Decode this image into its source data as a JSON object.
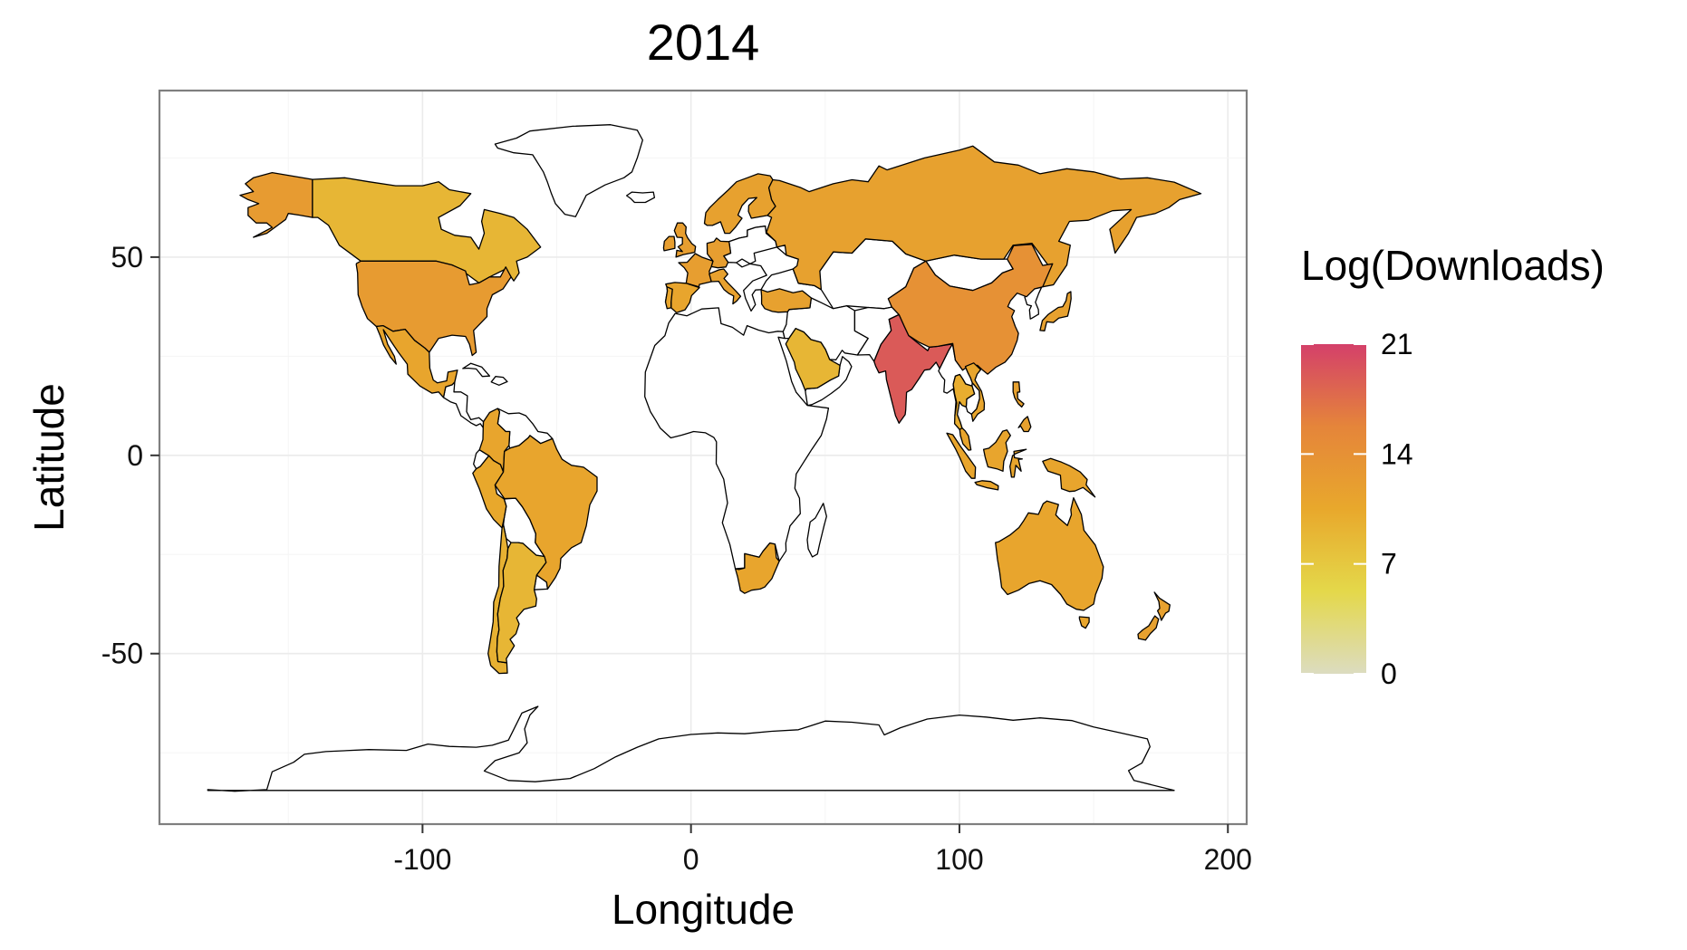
{
  "chart_data": {
    "type": "map",
    "title": "2014",
    "xlabel": "Longitude",
    "ylabel": "Latitude",
    "xlim": [
      -198,
      207
    ],
    "ylim": [
      -93,
      92
    ],
    "x_ticks": [
      -100,
      0,
      100,
      200
    ],
    "y_ticks": [
      -50,
      0,
      50
    ],
    "x_tick_labels": [
      "-100",
      "0",
      "100",
      "200"
    ],
    "y_tick_labels": [
      "-50",
      "0",
      "50"
    ],
    "grid": true,
    "legend": {
      "title": "Log(Downloads)",
      "placement": "right",
      "range": [
        0,
        21
      ],
      "breaks": [
        0,
        7,
        14,
        21
      ],
      "break_labels": [
        "0",
        "7",
        "14",
        "21"
      ],
      "colors": [
        "#dcdcc0",
        "#e4d84a",
        "#e8a82c",
        "#e5853a",
        "#d4406a"
      ]
    },
    "regions": [
      {
        "name": "Alaska",
        "value": 12.5
      },
      {
        "name": "Canada",
        "value": 9
      },
      {
        "name": "United States",
        "value": 12.5
      },
      {
        "name": "Mexico",
        "value": 11
      },
      {
        "name": "Brazil",
        "value": 11
      },
      {
        "name": "Argentina",
        "value": 9
      },
      {
        "name": "Chile",
        "value": 9.5
      },
      {
        "name": "Peru",
        "value": 10.5
      },
      {
        "name": "Colombia",
        "value": 11
      },
      {
        "name": "United Kingdom",
        "value": 12
      },
      {
        "name": "France",
        "value": 12
      },
      {
        "name": "Spain",
        "value": 11
      },
      {
        "name": "Germany",
        "value": 12
      },
      {
        "name": "Italy",
        "value": 11.5
      },
      {
        "name": "Scandinavia",
        "value": 11.5
      },
      {
        "name": "Russia",
        "value": 11.5
      },
      {
        "name": "Turkey",
        "value": 11.5
      },
      {
        "name": "Saudi Arabia",
        "value": 9
      },
      {
        "name": "India",
        "value": 19
      },
      {
        "name": "China",
        "value": 14
      },
      {
        "name": "Japan",
        "value": 11.5
      },
      {
        "name": "Thailand",
        "value": 10
      },
      {
        "name": "Vietnam",
        "value": 11
      },
      {
        "name": "Malaysia",
        "value": 11
      },
      {
        "name": "Indonesia",
        "value": 11
      },
      {
        "name": "Philippines",
        "value": 11.5
      },
      {
        "name": "Australia",
        "value": 11
      },
      {
        "name": "New Zealand",
        "value": 11.5
      },
      {
        "name": "South Africa",
        "value": 11
      }
    ]
  }
}
